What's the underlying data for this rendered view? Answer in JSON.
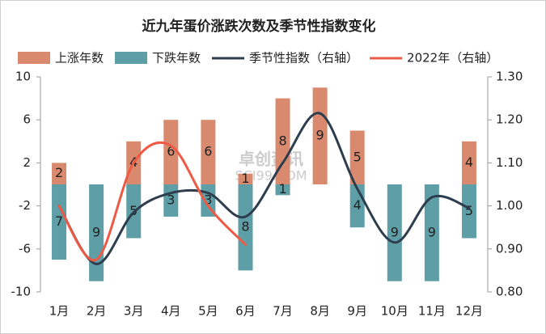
{
  "chart_data": {
    "type": "bar-line",
    "title": "近九年蛋价涨跌次数及季节性指数变化",
    "watermark": [
      "卓创资讯",
      "SCI99.COM"
    ],
    "categories": [
      "1月",
      "2月",
      "3月",
      "4月",
      "5月",
      "6月",
      "7月",
      "8月",
      "9月",
      "10月",
      "11月",
      "12月"
    ],
    "series": [
      {
        "name": "上涨年数",
        "color": "#d98a6e",
        "kind": "bar",
        "values": [
          2,
          null,
          4,
          6,
          6,
          1,
          8,
          9,
          5,
          null,
          null,
          4
        ]
      },
      {
        "name": "下跌年数",
        "color": "#5e9ea6",
        "kind": "bar",
        "values": [
          -7,
          -9,
          -5,
          -3,
          -3,
          -8,
          -1,
          null,
          -4,
          -9,
          -9,
          -5
        ],
        "value_labels": [
          "7",
          "9",
          "5",
          "3",
          "3",
          "8",
          "1",
          null,
          "4",
          "9",
          "9",
          "5"
        ]
      },
      {
        "name": "季节性指数（右轴）",
        "color": "#2e3d4d",
        "kind": "line",
        "axis": "y2",
        "values": [
          1.0,
          0.865,
          0.985,
          1.03,
          1.03,
          0.975,
          1.1,
          1.215,
          1.04,
          0.915,
          1.02,
          0.995
        ]
      },
      {
        "name": "2022年（右轴）",
        "color": "#ee5a45",
        "kind": "line",
        "axis": "y2",
        "values": [
          1.0,
          0.875,
          1.1,
          1.14,
          1.0,
          0.91,
          null,
          null,
          null,
          null,
          null,
          null
        ]
      }
    ],
    "ylim": [
      -10,
      10
    ],
    "yticks": [
      10,
      6,
      2,
      -2,
      -6,
      -10
    ],
    "y2lim": [
      0.8,
      1.3
    ],
    "y2ticks": [
      {
        "value": 1.3,
        "label": "1.30"
      },
      {
        "value": 1.2,
        "label": "1.20"
      },
      {
        "value": 1.1,
        "label": "1.10"
      },
      {
        "value": 1.0,
        "label": "1.00"
      },
      {
        "value": 0.9,
        "label": "0.90"
      },
      {
        "value": 0.8,
        "label": "0.80"
      }
    ]
  }
}
